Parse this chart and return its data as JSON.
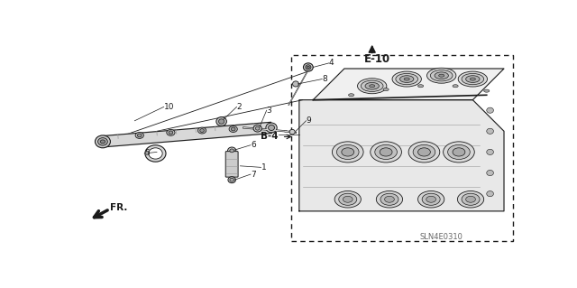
{
  "bg_color": "#ffffff",
  "dark": "#1a1a1a",
  "gray": "#666666",
  "light_gray": "#aaaaaa",
  "diagram_code": "SLN4E0310",
  "e10_label": "E-10",
  "b4_label": "B-4",
  "fr_label": "FR.",
  "part_numbers": [
    "1",
    "2",
    "3",
    "4",
    "5",
    "6",
    "7",
    "8",
    "9",
    "10"
  ],
  "figsize": [
    6.4,
    3.19
  ],
  "dpi": 100
}
